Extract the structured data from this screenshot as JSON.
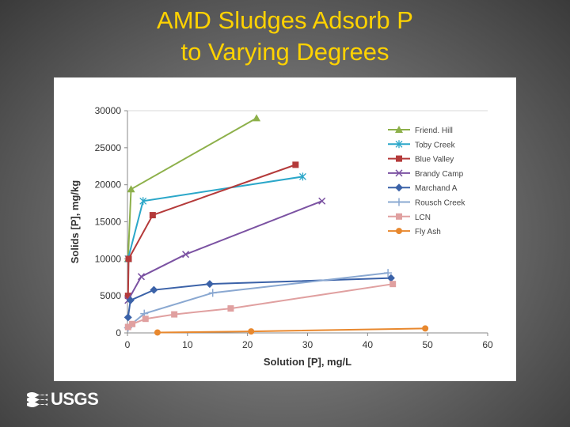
{
  "slide": {
    "title_line1": "AMD Sludges Adsorb P",
    "title_line2": "to Varying Degrees",
    "logo_text": "USGS"
  },
  "colors": {
    "title": "#FFD200"
  },
  "chart_data": {
    "type": "line",
    "title": "",
    "xlabel": "Solution [P], mg/L",
    "ylabel": "Solids [P], mg/kg",
    "xlim": [
      0,
      60
    ],
    "ylim": [
      0,
      30000
    ],
    "x_ticks": [
      0,
      10,
      20,
      30,
      40,
      50,
      60
    ],
    "y_ticks": [
      0,
      5000,
      10000,
      15000,
      20000,
      25000,
      30000
    ],
    "legend_position": "right",
    "grid": "horizontal-top-line-only",
    "series": [
      {
        "name": "Friend. Hill",
        "color": "#8DB04A",
        "marker": "triangle",
        "points": [
          [
            0.1,
            10000
          ],
          [
            0.6,
            19400
          ],
          [
            21.5,
            29000
          ]
        ]
      },
      {
        "name": "Toby Creek",
        "color": "#2BA7C9",
        "marker": "asterisk",
        "points": [
          [
            0.1,
            10000
          ],
          [
            2.6,
            17800
          ],
          [
            29.2,
            21100
          ]
        ]
      },
      {
        "name": "Blue Valley",
        "color": "#B43A3A",
        "marker": "square",
        "points": [
          [
            0.1,
            5000
          ],
          [
            0.2,
            10000
          ],
          [
            4.2,
            15900
          ],
          [
            28.0,
            22700
          ]
        ]
      },
      {
        "name": "Brandy Camp",
        "color": "#7B52A2",
        "marker": "x",
        "points": [
          [
            0.1,
            4400
          ],
          [
            2.3,
            7600
          ],
          [
            9.7,
            10600
          ],
          [
            32.4,
            17800
          ]
        ]
      },
      {
        "name": "Marchand A",
        "color": "#3B62A8",
        "marker": "diamond",
        "points": [
          [
            0.1,
            2100
          ],
          [
            0.5,
            4400
          ],
          [
            4.4,
            5800
          ],
          [
            13.7,
            6600
          ],
          [
            43.9,
            7400
          ]
        ]
      },
      {
        "name": "Rousch Creek",
        "color": "#8AA8D1",
        "marker": "plus",
        "points": [
          [
            0.1,
            700
          ],
          [
            0.4,
            1000
          ],
          [
            2.8,
            2600
          ],
          [
            14.2,
            5400
          ],
          [
            43.4,
            8100
          ]
        ]
      },
      {
        "name": "LCN",
        "color": "#E0A0A0",
        "marker": "square",
        "points": [
          [
            0.1,
            800
          ],
          [
            0.8,
            1200
          ],
          [
            3.0,
            1900
          ],
          [
            7.8,
            2500
          ],
          [
            17.2,
            3300
          ],
          [
            44.2,
            6600
          ]
        ]
      },
      {
        "name": "Fly Ash",
        "color": "#E8882E",
        "marker": "circle",
        "points": [
          [
            5.0,
            60
          ],
          [
            20.6,
            200
          ],
          [
            49.6,
            600
          ]
        ]
      }
    ]
  }
}
